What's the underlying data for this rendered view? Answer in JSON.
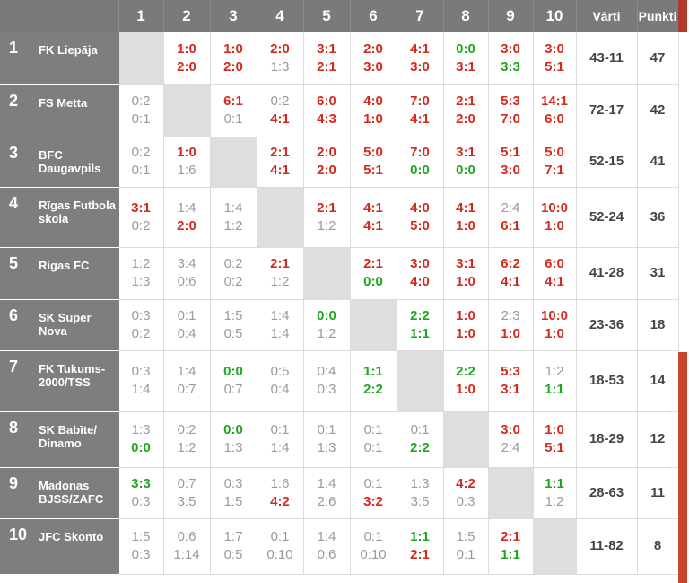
{
  "header": {
    "columns": [
      "1",
      "2",
      "3",
      "4",
      "5",
      "6",
      "7",
      "8",
      "9",
      "10"
    ],
    "goals_label": "Vārti",
    "points_label": "Punkti"
  },
  "rows": [
    {
      "pos": "1",
      "team": "FK Liepāja",
      "results": [
        null,
        [
          "1:0",
          "2:0"
        ],
        [
          "1:0",
          "2:0"
        ],
        [
          "2:0",
          "1:3"
        ],
        [
          "3:1",
          "2:1"
        ],
        [
          "2:0",
          "3:0"
        ],
        [
          "4:1",
          "3:0"
        ],
        [
          "0:0",
          "3:1"
        ],
        [
          "3:0",
          "3:3"
        ],
        [
          "3:0",
          "5:1"
        ]
      ],
      "goals": "43-11",
      "points": "47"
    },
    {
      "pos": "2",
      "team": "FS Metta",
      "results": [
        [
          "0:2",
          "0:1"
        ],
        null,
        [
          "6:1",
          "0:1"
        ],
        [
          "0:2",
          "4:1"
        ],
        [
          "6:0",
          "4:3"
        ],
        [
          "4:0",
          "1:0"
        ],
        [
          "7:0",
          "4:1"
        ],
        [
          "2:1",
          "2:0"
        ],
        [
          "5:3",
          "7:0"
        ],
        [
          "14:1",
          "6:0"
        ]
      ],
      "goals": "72-17",
      "points": "42"
    },
    {
      "pos": "3",
      "team": "BFC Daugavpils",
      "results": [
        [
          "0:2",
          "0:1"
        ],
        [
          "1:0",
          "1:6"
        ],
        null,
        [
          "2:1",
          "4:1"
        ],
        [
          "2:0",
          "2:0"
        ],
        [
          "5:0",
          "5:1"
        ],
        [
          "7:0",
          "0:0"
        ],
        [
          "3:1",
          "0:0"
        ],
        [
          "5:1",
          "3:0"
        ],
        [
          "5:0",
          "7:1"
        ]
      ],
      "goals": "52-15",
      "points": "41"
    },
    {
      "pos": "4",
      "team": "Rīgas Futbola skola",
      "results": [
        [
          "3:1",
          "0:2"
        ],
        [
          "1:4",
          "2:0"
        ],
        [
          "1:4",
          "1:2"
        ],
        null,
        [
          "2:1",
          "1:2"
        ],
        [
          "4:1",
          "4:1"
        ],
        [
          "4:0",
          "5:0"
        ],
        [
          "4:1",
          "1:0"
        ],
        [
          "2:4",
          "6:1"
        ],
        [
          "10:0",
          "1:0"
        ]
      ],
      "goals": "52-24",
      "points": "36"
    },
    {
      "pos": "5",
      "team": "Rigas FC",
      "results": [
        [
          "1:2",
          "1:3"
        ],
        [
          "3:4",
          "0:6"
        ],
        [
          "0:2",
          "0:2"
        ],
        [
          "2:1",
          "1:2"
        ],
        null,
        [
          "2:1",
          "0:0"
        ],
        [
          "3:0",
          "4:0"
        ],
        [
          "3:1",
          "1:0"
        ],
        [
          "6:2",
          "4:1"
        ],
        [
          "6:0",
          "4:1"
        ]
      ],
      "goals": "41-28",
      "points": "31"
    },
    {
      "pos": "6",
      "team": "SK Super Nova",
      "results": [
        [
          "0:3",
          "0:2"
        ],
        [
          "0:1",
          "0:4"
        ],
        [
          "1:5",
          "0:5"
        ],
        [
          "1:4",
          "1:4"
        ],
        [
          "0:0",
          "1:2"
        ],
        null,
        [
          "2:2",
          "1:1"
        ],
        [
          "1:0",
          "1:0"
        ],
        [
          "2:3",
          "1:0"
        ],
        [
          "10:0",
          "1:0"
        ]
      ],
      "goals": "23-36",
      "points": "18"
    },
    {
      "pos": "7",
      "team": "FK Tukums-2000/TSS",
      "results": [
        [
          "0:3",
          "1:4"
        ],
        [
          "1:4",
          "0:7"
        ],
        [
          "0:0",
          "0:7"
        ],
        [
          "0:5",
          "0:4"
        ],
        [
          "0:4",
          "0:3"
        ],
        [
          "1:1",
          "2:2"
        ],
        null,
        [
          "2:2",
          "1:0"
        ],
        [
          "5:3",
          "3:1"
        ],
        [
          "1:2",
          "1:1"
        ]
      ],
      "goals": "18-53",
      "points": "14"
    },
    {
      "pos": "8",
      "team": "SK Babīte/ Dinamo",
      "results": [
        [
          "1:3",
          "0:0"
        ],
        [
          "0:2",
          "1:2"
        ],
        [
          "0:0",
          "1:3"
        ],
        [
          "0:1",
          "1:4"
        ],
        [
          "0:1",
          "1:3"
        ],
        [
          "0:1",
          "0:1"
        ],
        [
          "0:1",
          "2:2"
        ],
        null,
        [
          "3:0",
          "2:4"
        ],
        [
          "1:0",
          "5:1"
        ]
      ],
      "goals": "18-29",
      "points": "12"
    },
    {
      "pos": "9",
      "team": "Madonas BJSS/ZAFC",
      "results": [
        [
          "3:3",
          "0:3"
        ],
        [
          "0:7",
          "3:5"
        ],
        [
          "0:3",
          "1:5"
        ],
        [
          "1:6",
          "4:2"
        ],
        [
          "1:4",
          "2:6"
        ],
        [
          "0:1",
          "3:2"
        ],
        [
          "1:3",
          "3:5"
        ],
        [
          "4:2",
          "0:3"
        ],
        null,
        [
          "1:1",
          "1:2"
        ]
      ],
      "goals": "28-63",
      "points": "11"
    },
    {
      "pos": "10",
      "team": "JFC Skonto",
      "results": [
        [
          "1:5",
          "0:3"
        ],
        [
          "0:6",
          "1:14"
        ],
        [
          "1:7",
          "0:5"
        ],
        [
          "0:1",
          "0:10"
        ],
        [
          "1:4",
          "0:6"
        ],
        [
          "0:1",
          "0:10"
        ],
        [
          "1:1",
          "2:1"
        ],
        [
          "1:5",
          "0:1"
        ],
        [
          "2:1",
          "1:1"
        ],
        null
      ],
      "goals": "11-82",
      "points": "8"
    }
  ],
  "colors": {
    "win": "#d42a1e",
    "draw": "#1fa61f",
    "loss": "#9a9a9a",
    "header_bg": "#7a7a7a",
    "diag_bg": "#dedede"
  }
}
